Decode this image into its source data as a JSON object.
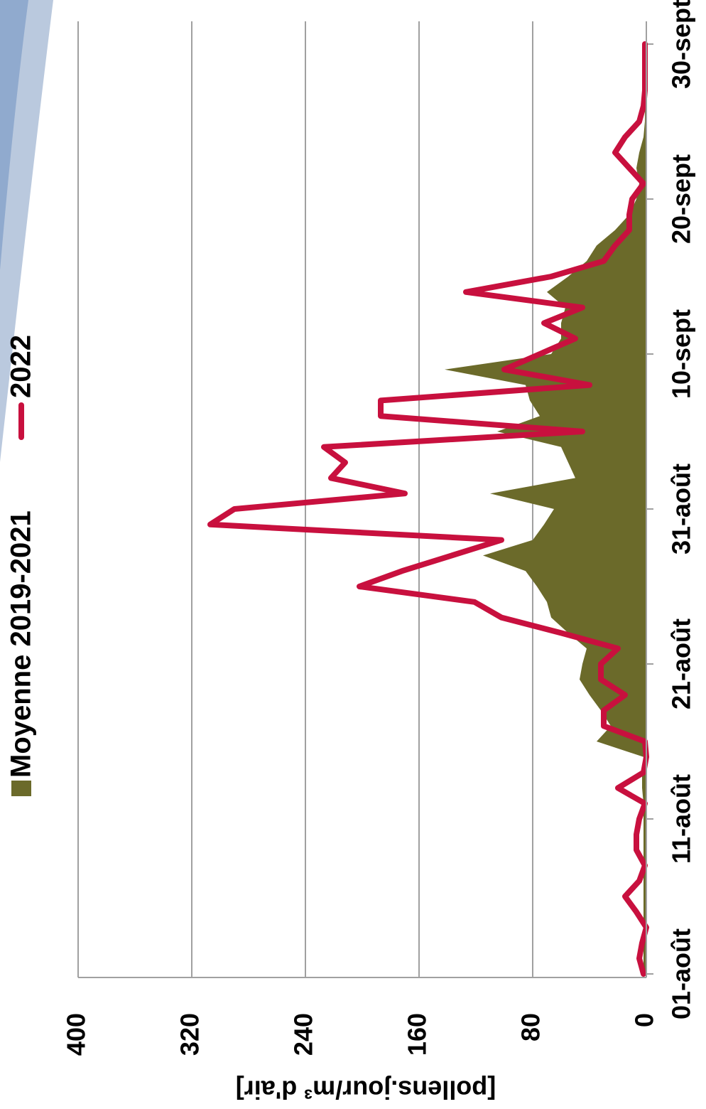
{
  "chart_data": {
    "type": "area-line",
    "y_label": "[pollens.jour/m³ d'air]",
    "categories": [
      "01-août",
      null,
      null,
      null,
      null,
      null,
      null,
      null,
      null,
      null,
      "11-août",
      null,
      null,
      null,
      null,
      null,
      null,
      null,
      null,
      null,
      "21-août",
      null,
      null,
      null,
      null,
      null,
      null,
      null,
      null,
      null,
      "31-août",
      null,
      null,
      null,
      null,
      null,
      null,
      null,
      null,
      null,
      "10-sept",
      null,
      null,
      null,
      null,
      null,
      null,
      null,
      null,
      null,
      "20-sept",
      null,
      null,
      null,
      null,
      null,
      null,
      null,
      null,
      null,
      "30-sept"
    ],
    "series": [
      {
        "name": "Moyenne 2019-2021",
        "kind": "area",
        "color": "#6b6a2a",
        "values": [
          2,
          2,
          2,
          2,
          2,
          2,
          2,
          2,
          2,
          2,
          2,
          2,
          3,
          3,
          2,
          35,
          25,
          32,
          40,
          47,
          45,
          42,
          55,
          67,
          70,
          77,
          85,
          115,
          80,
          72,
          65,
          110,
          50,
          55,
          60,
          105,
          75,
          82,
          85,
          142,
          67,
          60,
          60,
          57,
          70,
          55,
          42,
          35,
          22,
          12,
          7,
          5,
          7,
          5,
          2,
          1,
          1,
          1,
          1,
          1,
          1
        ]
      },
      {
        "name": "2022",
        "kind": "line",
        "color": "#c8103e",
        "values": [
          2,
          5,
          3,
          0,
          7,
          15,
          5,
          1,
          7,
          7,
          5,
          1,
          20,
          2,
          0,
          1,
          30,
          30,
          15,
          32,
          32,
          20,
          60,
          102,
          121,
          202,
          172,
          137,
          102,
          307,
          290,
          170,
          222,
          212,
          227,
          45,
          187,
          187,
          40,
          100,
          75,
          50,
          72,
          45,
          127,
          67,
          30,
          22,
          12,
          12,
          10,
          2,
          12,
          22,
          15,
          5,
          2,
          1,
          1,
          1,
          1
        ]
      }
    ],
    "ylim": [
      0,
      400
    ],
    "yticks": [
      0,
      80,
      160,
      240,
      320,
      400
    ],
    "grid": true
  }
}
